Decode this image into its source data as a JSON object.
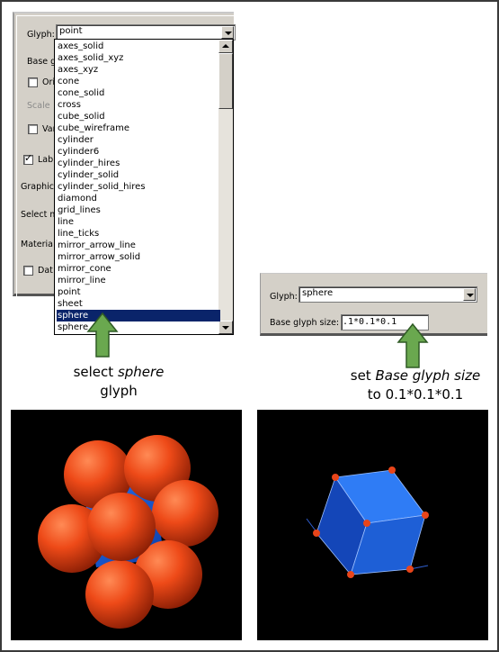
{
  "left_dialog": {
    "glyph_label": "Glyph:",
    "glyph_value": "point",
    "base_glyph_label_partial": "Base g",
    "orientation_label_partial": "Ori",
    "scale_label_partial": "Scale",
    "variable_label_partial": "Var",
    "label_label_partial": "Lab",
    "graphics_label_partial": "Graphic",
    "select_label_partial": "Select m",
    "material_label_partial": "Materia",
    "data_label_partial": "Dat",
    "checked_label": true,
    "dropdown_items": [
      "axes_solid",
      "axes_solid_xyz",
      "axes_xyz",
      "cone",
      "cone_solid",
      "cross",
      "cube_solid",
      "cube_wireframe",
      "cylinder",
      "cylinder6",
      "cylinder_hires",
      "cylinder_solid",
      "cylinder_solid_hires",
      "diamond",
      "grid_lines",
      "line",
      "line_ticks",
      "mirror_arrow_line",
      "mirror_arrow_solid",
      "mirror_cone",
      "mirror_line",
      "point",
      "sheet",
      "sphere",
      "sphere"
    ],
    "selected_index": 23
  },
  "right_dialog": {
    "glyph_label": "Glyph:",
    "glyph_value": "sphere",
    "base_size_label": "Base glyph size:",
    "base_size_value": ".1*0.1*0.1"
  },
  "captions": {
    "left_prefix": "select ",
    "left_em": "sphere",
    "left_suffix": "glyph",
    "right_prefix": "set ",
    "right_em": "Base glyph size",
    "right_suffix": "to 0.1*0.1*0.1"
  },
  "colors": {
    "arrow_green": "#6aa84f",
    "sphere_orange": "#e8451a",
    "cube_blue": "#1f5fd8",
    "selection": "#0a246a"
  }
}
